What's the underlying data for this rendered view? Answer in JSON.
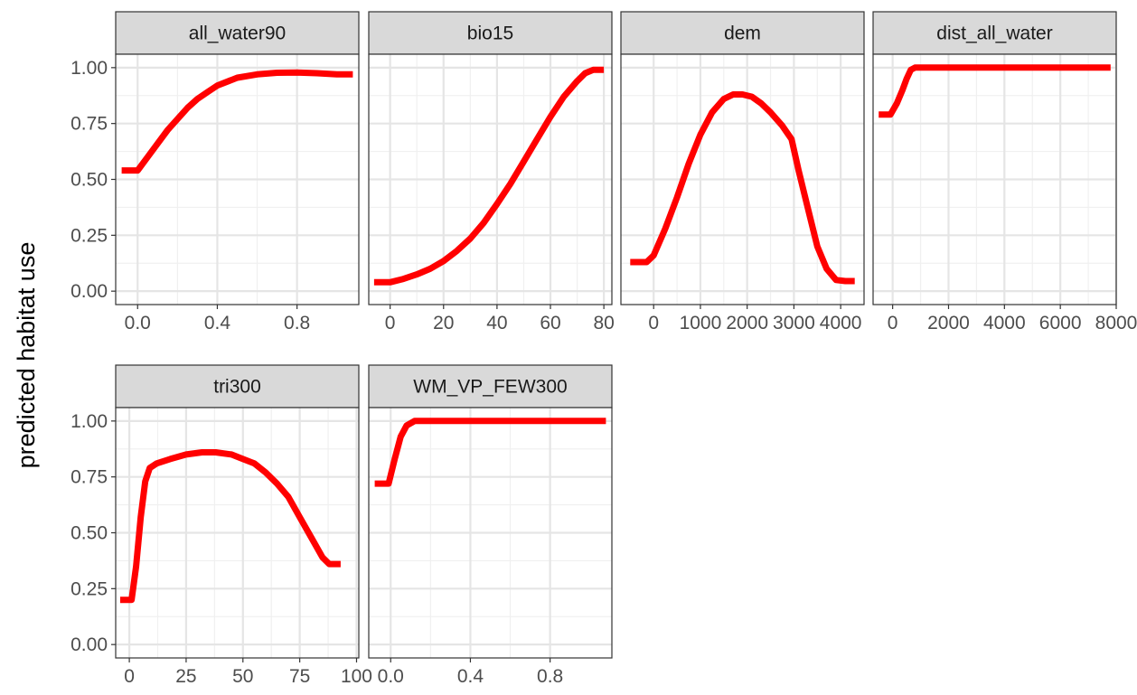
{
  "chart_data": {
    "type": "line",
    "ylabel": "predicted habitat use",
    "ylim": [
      -0.06,
      1.06
    ],
    "yticks": [
      0.0,
      0.25,
      0.5,
      0.75,
      1.0
    ],
    "ytick_labels": [
      "0.00",
      "0.25",
      "0.50",
      "0.75",
      "1.00"
    ],
    "grid": true,
    "line_color": "#ff0000",
    "facets": [
      {
        "strip": "all_water90",
        "xlim": [
          -0.11,
          1.11
        ],
        "xticks": [
          0.0,
          0.4,
          0.8
        ],
        "xtick_labels": [
          "0.0",
          "0.4",
          "0.8"
        ],
        "x": [
          -0.08,
          0.0,
          0.05,
          0.1,
          0.15,
          0.2,
          0.25,
          0.3,
          0.35,
          0.4,
          0.5,
          0.6,
          0.7,
          0.8,
          0.9,
          1.0,
          1.08
        ],
        "y": [
          0.54,
          0.54,
          0.6,
          0.66,
          0.72,
          0.77,
          0.82,
          0.86,
          0.89,
          0.92,
          0.955,
          0.97,
          0.977,
          0.978,
          0.975,
          0.97,
          0.97
        ]
      },
      {
        "strip": "bio15",
        "xlim": [
          -8,
          83
        ],
        "xticks": [
          0,
          20,
          40,
          60,
          80
        ],
        "xtick_labels": [
          "0",
          "20",
          "40",
          "60",
          "80"
        ],
        "x": [
          -6,
          0,
          5,
          10,
          15,
          20,
          25,
          30,
          35,
          40,
          45,
          50,
          55,
          60,
          65,
          70,
          73,
          76,
          80
        ],
        "y": [
          0.04,
          0.04,
          0.055,
          0.075,
          0.1,
          0.135,
          0.18,
          0.235,
          0.305,
          0.39,
          0.48,
          0.58,
          0.68,
          0.78,
          0.87,
          0.94,
          0.975,
          0.99,
          0.99
        ]
      },
      {
        "strip": "dem",
        "xlim": [
          -700,
          4500
        ],
        "xticks": [
          0,
          1000,
          2000,
          3000,
          4000
        ],
        "xtick_labels": [
          "0",
          "1000",
          "2000",
          "3000",
          "4000"
        ],
        "x": [
          -500,
          -150,
          0,
          250,
          500,
          750,
          1000,
          1250,
          1500,
          1700,
          1900,
          2100,
          2300,
          2500,
          2750,
          2950,
          3100,
          3300,
          3500,
          3700,
          3900,
          4100,
          4300
        ],
        "y": [
          0.13,
          0.13,
          0.16,
          0.28,
          0.42,
          0.57,
          0.7,
          0.8,
          0.86,
          0.88,
          0.88,
          0.87,
          0.84,
          0.8,
          0.74,
          0.68,
          0.54,
          0.37,
          0.2,
          0.1,
          0.05,
          0.045,
          0.045
        ]
      },
      {
        "strip": "dist_all_water",
        "xlim": [
          -700,
          8000
        ],
        "xticks": [
          0,
          2000,
          4000,
          6000,
          8000
        ],
        "xtick_labels": [
          "0",
          "2000",
          "4000",
          "6000",
          "8000"
        ],
        "x": [
          -500,
          -80,
          150,
          350,
          500,
          650,
          800,
          1000,
          2000,
          4000,
          6000,
          7800
        ],
        "y": [
          0.79,
          0.79,
          0.84,
          0.9,
          0.95,
          0.99,
          1.0,
          1.0,
          1.0,
          1.0,
          1.0,
          1.0
        ]
      },
      {
        "strip": "tri300",
        "xlim": [
          -6,
          101
        ],
        "xticks": [
          0,
          25,
          50,
          75,
          100
        ],
        "xtick_labels": [
          "0",
          "25",
          "50",
          "75",
          "100"
        ],
        "x": [
          -4,
          1,
          3,
          5,
          7,
          9,
          12,
          18,
          25,
          32,
          38,
          45,
          50,
          55,
          60,
          65,
          70,
          75,
          80,
          85,
          88,
          93
        ],
        "y": [
          0.2,
          0.2,
          0.35,
          0.57,
          0.73,
          0.79,
          0.81,
          0.83,
          0.85,
          0.86,
          0.86,
          0.85,
          0.83,
          0.81,
          0.77,
          0.72,
          0.66,
          0.57,
          0.48,
          0.39,
          0.36,
          0.36
        ]
      },
      {
        "strip": "WM_VP_FEW300",
        "xlim": [
          -0.11,
          1.11
        ],
        "xticks": [
          0.0,
          0.4,
          0.8
        ],
        "xtick_labels": [
          "0.0",
          "0.4",
          "0.8"
        ],
        "x": [
          -0.08,
          -0.01,
          0.02,
          0.05,
          0.08,
          0.12,
          0.18,
          0.4,
          0.7,
          1.08
        ],
        "y": [
          0.72,
          0.72,
          0.83,
          0.93,
          0.98,
          1.0,
          1.0,
          1.0,
          1.0,
          1.0
        ]
      }
    ]
  }
}
